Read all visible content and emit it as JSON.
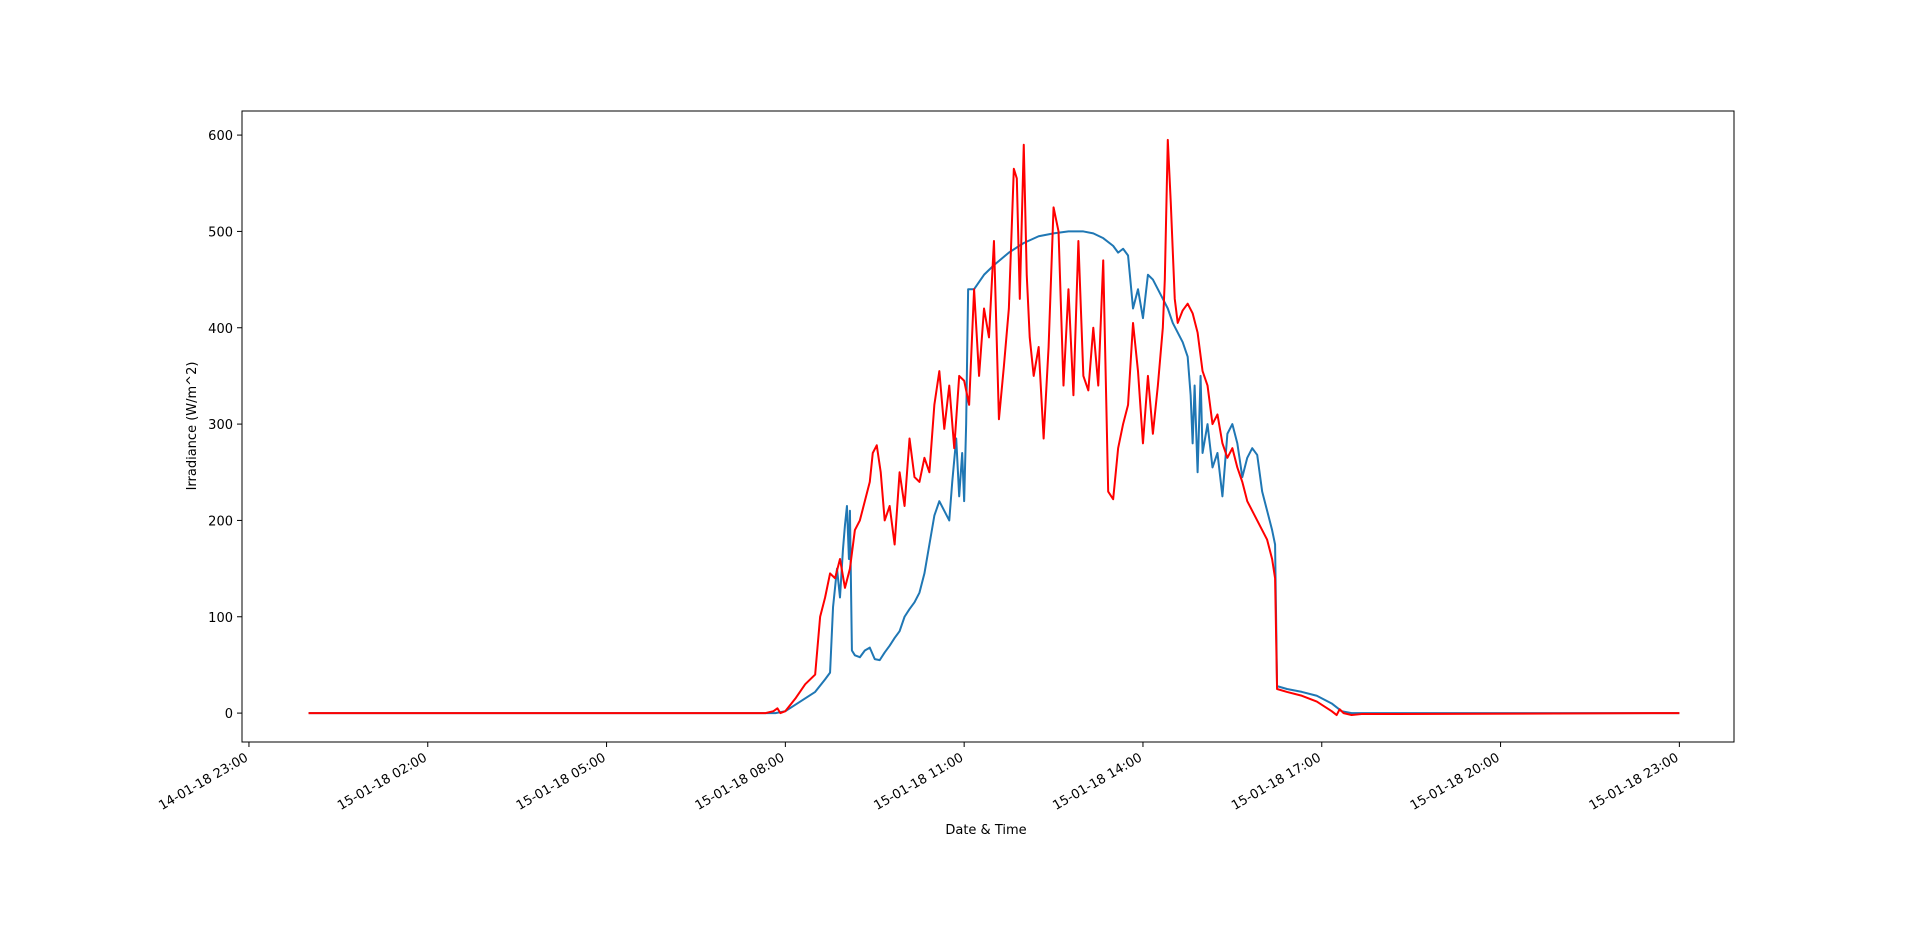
{
  "chart_data": {
    "type": "line",
    "xlabel": "Date & Time",
    "ylabel": "Irradiance (W/m^2)",
    "grid": false,
    "legend": "none",
    "x_unit": "time",
    "xlim": [
      "14-01-18 22:53",
      "15-01-18 23:55"
    ],
    "ylim": [
      -30,
      625
    ],
    "x_ticks": [
      {
        "t": "14-01-18 23:00",
        "label": "14-01-18 23:00"
      },
      {
        "t": "15-01-18 02:00",
        "label": "15-01-18 02:00"
      },
      {
        "t": "15-01-18 05:00",
        "label": "15-01-18 05:00"
      },
      {
        "t": "15-01-18 08:00",
        "label": "15-01-18 08:00"
      },
      {
        "t": "15-01-18 11:00",
        "label": "15-01-18 11:00"
      },
      {
        "t": "15-01-18 14:00",
        "label": "15-01-18 14:00"
      },
      {
        "t": "15-01-18 17:00",
        "label": "15-01-18 17:00"
      },
      {
        "t": "15-01-18 20:00",
        "label": "15-01-18 20:00"
      },
      {
        "t": "15-01-18 23:00",
        "label": "15-01-18 23:00"
      }
    ],
    "y_ticks": [
      0,
      100,
      200,
      300,
      400,
      500,
      600
    ],
    "series": [
      {
        "color": "#1f77b4",
        "points": [
          [
            "15-01-18 00:00",
            0
          ],
          [
            "15-01-18 07:50",
            0
          ],
          [
            "15-01-18 08:00",
            2
          ],
          [
            "15-01-18 08:15",
            12
          ],
          [
            "15-01-18 08:30",
            22
          ],
          [
            "15-01-18 08:40",
            35
          ],
          [
            "15-01-18 08:45",
            42
          ],
          [
            "15-01-18 08:48",
            110
          ],
          [
            "15-01-18 08:52",
            150
          ],
          [
            "15-01-18 08:55",
            120
          ],
          [
            "15-01-18 08:58",
            170
          ],
          [
            "15-01-18 09:00",
            195
          ],
          [
            "15-01-18 09:02",
            215
          ],
          [
            "15-01-18 09:04",
            160
          ],
          [
            "15-01-18 09:05",
            210
          ],
          [
            "15-01-18 09:07",
            65
          ],
          [
            "15-01-18 09:10",
            60
          ],
          [
            "15-01-18 09:15",
            58
          ],
          [
            "15-01-18 09:20",
            65
          ],
          [
            "15-01-18 09:25",
            68
          ],
          [
            "15-01-18 09:30",
            56
          ],
          [
            "15-01-18 09:35",
            55
          ],
          [
            "15-01-18 09:40",
            63
          ],
          [
            "15-01-18 09:45",
            70
          ],
          [
            "15-01-18 09:50",
            78
          ],
          [
            "15-01-18 09:55",
            85
          ],
          [
            "15-01-18 10:00",
            100
          ],
          [
            "15-01-18 10:05",
            108
          ],
          [
            "15-01-18 10:10",
            115
          ],
          [
            "15-01-18 10:15",
            125
          ],
          [
            "15-01-18 10:20",
            145
          ],
          [
            "15-01-18 10:25",
            175
          ],
          [
            "15-01-18 10:30",
            205
          ],
          [
            "15-01-18 10:35",
            220
          ],
          [
            "15-01-18 10:40",
            210
          ],
          [
            "15-01-18 10:45",
            200
          ],
          [
            "15-01-18 10:48",
            240
          ],
          [
            "15-01-18 10:52",
            285
          ],
          [
            "15-01-18 10:55",
            225
          ],
          [
            "15-01-18 10:58",
            270
          ],
          [
            "15-01-18 11:00",
            220
          ],
          [
            "15-01-18 11:02",
            300
          ],
          [
            "15-01-18 11:04",
            440
          ],
          [
            "15-01-18 11:10",
            440
          ],
          [
            "15-01-18 11:20",
            455
          ],
          [
            "15-01-18 11:30",
            465
          ],
          [
            "15-01-18 11:45",
            478
          ],
          [
            "15-01-18 12:00",
            488
          ],
          [
            "15-01-18 12:15",
            495
          ],
          [
            "15-01-18 12:30",
            498
          ],
          [
            "15-01-18 12:45",
            500
          ],
          [
            "15-01-18 13:00",
            500
          ],
          [
            "15-01-18 13:10",
            498
          ],
          [
            "15-01-18 13:20",
            493
          ],
          [
            "15-01-18 13:30",
            485
          ],
          [
            "15-01-18 13:35",
            478
          ],
          [
            "15-01-18 13:40",
            482
          ],
          [
            "15-01-18 13:45",
            475
          ],
          [
            "15-01-18 13:50",
            420
          ],
          [
            "15-01-18 13:55",
            440
          ],
          [
            "15-01-18 14:00",
            410
          ],
          [
            "15-01-18 14:05",
            455
          ],
          [
            "15-01-18 14:10",
            450
          ],
          [
            "15-01-18 14:15",
            440
          ],
          [
            "15-01-18 14:20",
            430
          ],
          [
            "15-01-18 14:25",
            420
          ],
          [
            "15-01-18 14:30",
            405
          ],
          [
            "15-01-18 14:35",
            395
          ],
          [
            "15-01-18 14:40",
            385
          ],
          [
            "15-01-18 14:45",
            370
          ],
          [
            "15-01-18 14:48",
            330
          ],
          [
            "15-01-18 14:50",
            280
          ],
          [
            "15-01-18 14:52",
            340
          ],
          [
            "15-01-18 14:55",
            250
          ],
          [
            "15-01-18 14:58",
            350
          ],
          [
            "15-01-18 15:00",
            270
          ],
          [
            "15-01-18 15:05",
            300
          ],
          [
            "15-01-18 15:10",
            255
          ],
          [
            "15-01-18 15:15",
            270
          ],
          [
            "15-01-18 15:20",
            225
          ],
          [
            "15-01-18 15:25",
            290
          ],
          [
            "15-01-18 15:30",
            300
          ],
          [
            "15-01-18 15:35",
            280
          ],
          [
            "15-01-18 15:40",
            245
          ],
          [
            "15-01-18 15:45",
            265
          ],
          [
            "15-01-18 15:50",
            275
          ],
          [
            "15-01-18 15:55",
            268
          ],
          [
            "15-01-18 16:00",
            230
          ],
          [
            "15-01-18 16:05",
            210
          ],
          [
            "15-01-18 16:10",
            190
          ],
          [
            "15-01-18 16:13",
            175
          ],
          [
            "15-01-18 16:15",
            28
          ],
          [
            "15-01-18 16:25",
            25
          ],
          [
            "15-01-18 16:40",
            22
          ],
          [
            "15-01-18 16:55",
            18
          ],
          [
            "15-01-18 17:10",
            10
          ],
          [
            "15-01-18 17:20",
            2
          ],
          [
            "15-01-18 17:30",
            0
          ],
          [
            "15-01-18 23:00",
            0
          ]
        ]
      },
      {
        "color": "#ff0000",
        "points": [
          [
            "15-01-18 00:00",
            0
          ],
          [
            "15-01-18 07:40",
            0
          ],
          [
            "15-01-18 07:48",
            2
          ],
          [
            "15-01-18 07:52",
            5
          ],
          [
            "15-01-18 07:55",
            0
          ],
          [
            "15-01-18 08:00",
            2
          ],
          [
            "15-01-18 08:10",
            15
          ],
          [
            "15-01-18 08:20",
            30
          ],
          [
            "15-01-18 08:30",
            40
          ],
          [
            "15-01-18 08:35",
            100
          ],
          [
            "15-01-18 08:40",
            120
          ],
          [
            "15-01-18 08:45",
            145
          ],
          [
            "15-01-18 08:50",
            140
          ],
          [
            "15-01-18 08:55",
            160
          ],
          [
            "15-01-18 09:00",
            130
          ],
          [
            "15-01-18 09:05",
            150
          ],
          [
            "15-01-18 09:10",
            190
          ],
          [
            "15-01-18 09:15",
            200
          ],
          [
            "15-01-18 09:20",
            220
          ],
          [
            "15-01-18 09:25",
            240
          ],
          [
            "15-01-18 09:28",
            270
          ],
          [
            "15-01-18 09:32",
            278
          ],
          [
            "15-01-18 09:36",
            250
          ],
          [
            "15-01-18 09:40",
            200
          ],
          [
            "15-01-18 09:45",
            215
          ],
          [
            "15-01-18 09:50",
            175
          ],
          [
            "15-01-18 09:55",
            250
          ],
          [
            "15-01-18 10:00",
            215
          ],
          [
            "15-01-18 10:05",
            285
          ],
          [
            "15-01-18 10:10",
            245
          ],
          [
            "15-01-18 10:15",
            240
          ],
          [
            "15-01-18 10:20",
            265
          ],
          [
            "15-01-18 10:25",
            250
          ],
          [
            "15-01-18 10:30",
            320
          ],
          [
            "15-01-18 10:35",
            355
          ],
          [
            "15-01-18 10:40",
            295
          ],
          [
            "15-01-18 10:45",
            340
          ],
          [
            "15-01-18 10:50",
            275
          ],
          [
            "15-01-18 10:55",
            350
          ],
          [
            "15-01-18 11:00",
            345
          ],
          [
            "15-01-18 11:05",
            320
          ],
          [
            "15-01-18 11:10",
            440
          ],
          [
            "15-01-18 11:15",
            350
          ],
          [
            "15-01-18 11:20",
            420
          ],
          [
            "15-01-18 11:25",
            390
          ],
          [
            "15-01-18 11:30",
            490
          ],
          [
            "15-01-18 11:35",
            305
          ],
          [
            "15-01-18 11:40",
            360
          ],
          [
            "15-01-18 11:45",
            420
          ],
          [
            "15-01-18 11:50",
            565
          ],
          [
            "15-01-18 11:53",
            555
          ],
          [
            "15-01-18 11:56",
            430
          ],
          [
            "15-01-18 12:00",
            590
          ],
          [
            "15-01-18 12:03",
            455
          ],
          [
            "15-01-18 12:06",
            390
          ],
          [
            "15-01-18 12:10",
            350
          ],
          [
            "15-01-18 12:15",
            380
          ],
          [
            "15-01-18 12:20",
            285
          ],
          [
            "15-01-18 12:25",
            380
          ],
          [
            "15-01-18 12:30",
            525
          ],
          [
            "15-01-18 12:35",
            500
          ],
          [
            "15-01-18 12:40",
            340
          ],
          [
            "15-01-18 12:45",
            440
          ],
          [
            "15-01-18 12:50",
            330
          ],
          [
            "15-01-18 12:55",
            490
          ],
          [
            "15-01-18 13:00",
            350
          ],
          [
            "15-01-18 13:05",
            335
          ],
          [
            "15-01-18 13:10",
            400
          ],
          [
            "15-01-18 13:15",
            340
          ],
          [
            "15-01-18 13:20",
            470
          ],
          [
            "15-01-18 13:25",
            230
          ],
          [
            "15-01-18 13:30",
            222
          ],
          [
            "15-01-18 13:35",
            275
          ],
          [
            "15-01-18 13:40",
            300
          ],
          [
            "15-01-18 13:45",
            320
          ],
          [
            "15-01-18 13:50",
            405
          ],
          [
            "15-01-18 13:55",
            355
          ],
          [
            "15-01-18 14:00",
            280
          ],
          [
            "15-01-18 14:05",
            350
          ],
          [
            "15-01-18 14:10",
            290
          ],
          [
            "15-01-18 14:15",
            340
          ],
          [
            "15-01-18 14:20",
            400
          ],
          [
            "15-01-18 14:22",
            450
          ],
          [
            "15-01-18 14:25",
            595
          ],
          [
            "15-01-18 14:28",
            530
          ],
          [
            "15-01-18 14:32",
            430
          ],
          [
            "15-01-18 14:35",
            405
          ],
          [
            "15-01-18 14:40",
            418
          ],
          [
            "15-01-18 14:45",
            425
          ],
          [
            "15-01-18 14:50",
            415
          ],
          [
            "15-01-18 14:55",
            395
          ],
          [
            "15-01-18 15:00",
            355
          ],
          [
            "15-01-18 15:05",
            340
          ],
          [
            "15-01-18 15:10",
            300
          ],
          [
            "15-01-18 15:15",
            310
          ],
          [
            "15-01-18 15:20",
            280
          ],
          [
            "15-01-18 15:25",
            265
          ],
          [
            "15-01-18 15:30",
            275
          ],
          [
            "15-01-18 15:35",
            255
          ],
          [
            "15-01-18 15:40",
            240
          ],
          [
            "15-01-18 15:45",
            220
          ],
          [
            "15-01-18 15:50",
            210
          ],
          [
            "15-01-18 15:55",
            200
          ],
          [
            "15-01-18 16:00",
            190
          ],
          [
            "15-01-18 16:05",
            180
          ],
          [
            "15-01-18 16:10",
            160
          ],
          [
            "15-01-18 16:13",
            140
          ],
          [
            "15-01-18 16:15",
            25
          ],
          [
            "15-01-18 16:25",
            22
          ],
          [
            "15-01-18 16:40",
            18
          ],
          [
            "15-01-18 16:55",
            12
          ],
          [
            "15-01-18 17:10",
            2
          ],
          [
            "15-01-18 17:15",
            -2
          ],
          [
            "15-01-18 17:18",
            4
          ],
          [
            "15-01-18 17:22",
            0
          ],
          [
            "15-01-18 17:30",
            -2
          ],
          [
            "15-01-18 17:40",
            -1
          ],
          [
            "15-01-18 23:00",
            0
          ]
        ]
      }
    ]
  }
}
